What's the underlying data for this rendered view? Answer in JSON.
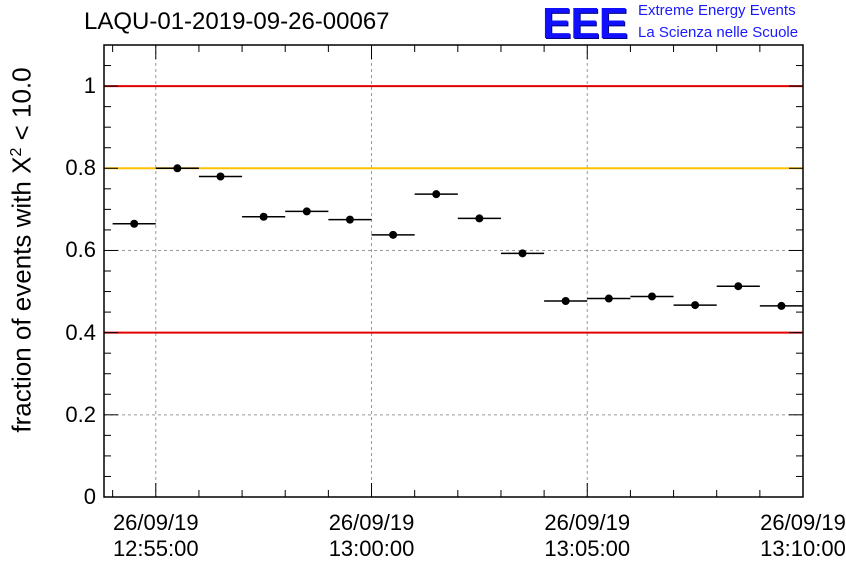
{
  "page": {
    "title": "LAQU-01-2019-09-26-00067",
    "logo_text": "EEE",
    "logo_line1": "Extreme Energy Events",
    "logo_line2": "La Scienza nelle Scuole"
  },
  "chart_data": {
    "type": "scatter",
    "title": "LAQU-01-2019-09-26-00067",
    "ylabel_prefix": "fraction of events with ",
    "ylabel_symbol": "X",
    "ylabel_sup": "2",
    "ylabel_suffix": " < 10.0",
    "ylim": [
      0,
      1.1
    ],
    "xlim_minutes": [
      0,
      16
    ],
    "y_ticks": [
      0,
      0.2,
      0.4,
      0.6,
      0.8,
      1
    ],
    "y_tick_labels": [
      "0",
      "0.2",
      "0.4",
      "0.6",
      "0.8",
      "1"
    ],
    "x_ticks": [
      {
        "minute": 1,
        "date": "26/09/19",
        "time": "12:55:00"
      },
      {
        "minute": 6,
        "date": "26/09/19",
        "time": "13:00:00"
      },
      {
        "minute": 11,
        "date": "26/09/19",
        "time": "13:05:00"
      },
      {
        "minute": 16,
        "date": "26/09/19",
        "time": "13:10:00"
      }
    ],
    "grid": true,
    "reference_lines": [
      {
        "y": 1.0,
        "color": "#e00000"
      },
      {
        "y": 0.8,
        "color": "#ffc000"
      },
      {
        "y": 0.4,
        "color": "#e00000"
      }
    ],
    "points": [
      {
        "x_start": 0.0,
        "x_end": 1.0,
        "y": 0.665
      },
      {
        "x_start": 1.0,
        "x_end": 2.0,
        "y": 0.8
      },
      {
        "x_start": 2.0,
        "x_end": 3.0,
        "y": 0.78
      },
      {
        "x_start": 3.0,
        "x_end": 4.0,
        "y": 0.682
      },
      {
        "x_start": 4.0,
        "x_end": 5.0,
        "y": 0.695
      },
      {
        "x_start": 5.0,
        "x_end": 6.0,
        "y": 0.675
      },
      {
        "x_start": 6.0,
        "x_end": 7.0,
        "y": 0.638
      },
      {
        "x_start": 7.0,
        "x_end": 8.0,
        "y": 0.737
      },
      {
        "x_start": 8.0,
        "x_end": 9.0,
        "y": 0.678
      },
      {
        "x_start": 9.0,
        "x_end": 10.0,
        "y": 0.593
      },
      {
        "x_start": 10.0,
        "x_end": 11.0,
        "y": 0.477
      },
      {
        "x_start": 11.0,
        "x_end": 12.0,
        "y": 0.483
      },
      {
        "x_start": 12.0,
        "x_end": 13.0,
        "y": 0.488
      },
      {
        "x_start": 13.0,
        "x_end": 14.0,
        "y": 0.467
      },
      {
        "x_start": 14.0,
        "x_end": 15.0,
        "y": 0.513
      },
      {
        "x_start": 15.0,
        "x_end": 16.0,
        "y": 0.465
      }
    ]
  }
}
